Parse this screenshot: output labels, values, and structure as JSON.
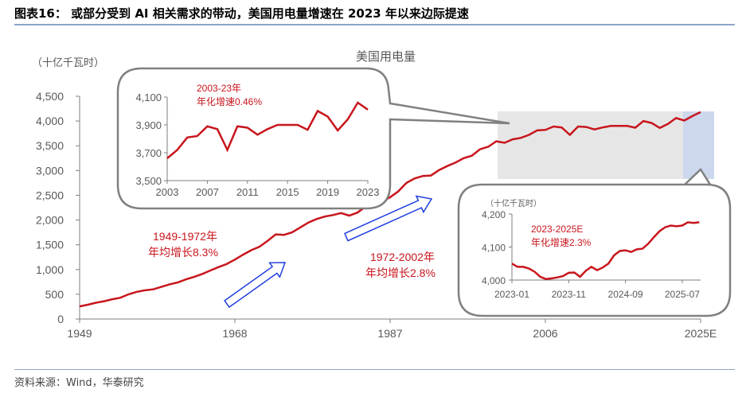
{
  "header": {
    "title": "图表16：  或部分受到 AI 相关需求的带动，美国用电量增速在 2023 年以来边际提速"
  },
  "footer": {
    "source": "资料来源：Wind，华泰研究"
  },
  "colors": {
    "line": "#c8161d",
    "axis": "#7f7f7f",
    "shade_gray": "#e6e6e6",
    "shade_blue": "#cdd8ee",
    "arrow": "#1f3ee0",
    "annotation": "#c8161d"
  },
  "chart_data": [
    {
      "type": "line",
      "title": "美国用电量",
      "ylabel": "（十亿千瓦时）",
      "ylim": [
        0,
        4500
      ],
      "yticks": [
        "0",
        "500",
        "1,000",
        "1,500",
        "2,000",
        "2,500",
        "3,000",
        "3,500",
        "4,000",
        "4,500"
      ],
      "xticks": [
        "1949",
        "1968",
        "1987",
        "2006",
        "2025E"
      ],
      "annotations": [
        {
          "line1": "1949-1972年",
          "line2": "年均增长8.3%"
        },
        {
          "line1": "1972-2002年",
          "line2": "年均增长2.8%"
        }
      ],
      "x": [
        1949,
        1950,
        1951,
        1952,
        1953,
        1954,
        1955,
        1956,
        1957,
        1958,
        1959,
        1960,
        1961,
        1962,
        1963,
        1964,
        1965,
        1966,
        1967,
        1968,
        1969,
        1970,
        1971,
        1972,
        1973,
        1974,
        1975,
        1976,
        1977,
        1978,
        1979,
        1980,
        1981,
        1982,
        1983,
        1984,
        1985,
        1986,
        1987,
        1988,
        1989,
        1990,
        1991,
        1992,
        1993,
        1994,
        1995,
        1996,
        1997,
        1998,
        1999,
        2000,
        2001,
        2002,
        2003,
        2004,
        2005,
        2006,
        2007,
        2008,
        2009,
        2010,
        2011,
        2012,
        2013,
        2014,
        2015,
        2016,
        2017,
        2018,
        2019,
        2020,
        2021,
        2022,
        2023,
        2024,
        2025
      ],
      "values": [
        255,
        290,
        330,
        360,
        400,
        430,
        500,
        550,
        580,
        600,
        650,
        700,
        740,
        800,
        850,
        910,
        980,
        1050,
        1110,
        1200,
        1300,
        1390,
        1460,
        1580,
        1710,
        1700,
        1750,
        1850,
        1950,
        2020,
        2070,
        2100,
        2140,
        2090,
        2150,
        2270,
        2320,
        2370,
        2460,
        2580,
        2750,
        2840,
        2890,
        2900,
        3010,
        3090,
        3160,
        3250,
        3300,
        3430,
        3480,
        3590,
        3560,
        3630,
        3660,
        3720,
        3810,
        3820,
        3890,
        3870,
        3720,
        3890,
        3880,
        3830,
        3870,
        3900,
        3900,
        3900,
        3865,
        4000,
        3960,
        3860,
        3940,
        4060,
        4010,
        4100,
        4180
      ]
    },
    {
      "type": "line",
      "ylim": [
        3500,
        4100
      ],
      "yticks": [
        "3,500",
        "3,700",
        "3,900",
        "4,100"
      ],
      "xticks": [
        "2003",
        "2007",
        "2011",
        "2015",
        "2019",
        "2023"
      ],
      "annotation": {
        "line1": "2003-23年",
        "line2": "年化增速0.46%"
      },
      "x": [
        2003,
        2004,
        2005,
        2006,
        2007,
        2008,
        2009,
        2010,
        2011,
        2012,
        2013,
        2014,
        2015,
        2016,
        2017,
        2018,
        2019,
        2020,
        2021,
        2022,
        2023
      ],
      "values": [
        3660,
        3720,
        3810,
        3820,
        3890,
        3870,
        3720,
        3890,
        3880,
        3830,
        3870,
        3900,
        3900,
        3900,
        3865,
        4000,
        3960,
        3860,
        3940,
        4060,
        4010
      ]
    },
    {
      "type": "line",
      "ylabel": "（十亿千瓦时）",
      "ylim": [
        4000,
        4200
      ],
      "yticks": [
        "4,000",
        "4,100",
        "4,200"
      ],
      "xticks": [
        "2023-01",
        "2023-11",
        "2024-09",
        "2025-07"
      ],
      "annotation": {
        "line1": "2023-2025E",
        "line2": "年化增速2.3%"
      },
      "values": [
        4050,
        4040,
        4040,
        4035,
        4025,
        4010,
        4003,
        4005,
        4008,
        4012,
        4022,
        4023,
        4010,
        4028,
        4040,
        4030,
        4038,
        4050,
        4075,
        4088,
        4090,
        4085,
        4093,
        4095,
        4110,
        4130,
        4148,
        4160,
        4165,
        4163,
        4165,
        4175,
        4173,
        4175
      ]
    }
  ]
}
